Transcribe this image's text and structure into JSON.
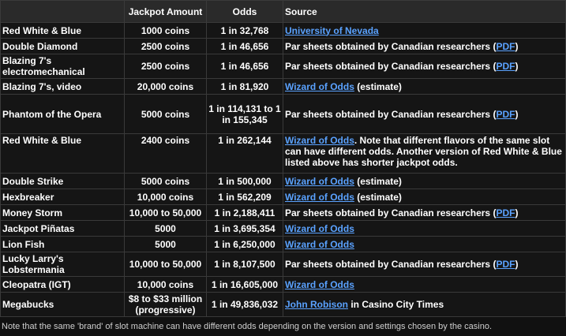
{
  "headers": [
    "",
    "Jackpot Amount",
    "Odds",
    "Source"
  ],
  "rows": [
    {
      "name": "Red White & Blue",
      "jackpot": "1000 coins",
      "odds": "1 in 32,768",
      "link": "University of Nevada",
      "after": ""
    },
    {
      "name": "Double Diamond",
      "jackpot": "2500 coins",
      "odds": "1 in 46,656",
      "before": "Par sheets obtained by Canadian researchers (",
      "link": "PDF",
      "after": ")"
    },
    {
      "name": "Blazing 7's electromechanical",
      "jackpot": "2500 coins",
      "odds": "1 in 46,656",
      "before": "Par sheets obtained by Canadian researchers (",
      "link": "PDF",
      "after": ")"
    },
    {
      "name": "Blazing 7's, video",
      "jackpot": "20,000 coins",
      "odds": "1 in 81,920",
      "link": "Wizard of Odds",
      "after": " (estimate)"
    },
    {
      "name": "Phantom of the Opera",
      "jackpot": "5000 coins",
      "odds": "1 in 114,131 to 1 in 155,345",
      "before": "Par sheets obtained by Canadian researchers (",
      "link": "PDF",
      "after": ")"
    },
    {
      "name": "Red White & Blue",
      "jackpot": "2400 coins",
      "odds": "1 in 262,144",
      "link": "Wizard of Odds",
      "after": ".  Note that different flavors of the same slot can have different odds.  Another version of Red White & Blue listed above has shorter jackpot odds."
    },
    {
      "name": "Double Strike",
      "jackpot": "5000 coins",
      "odds": "1 in 500,000",
      "link": "Wizard of Odds",
      "after": " (estimate)"
    },
    {
      "name": "Hexbreaker",
      "jackpot": "10,000 coins",
      "odds": "1 in 562,209",
      "link": "Wizard of Odds",
      "after": " (estimate)"
    },
    {
      "name": "Money Storm",
      "jackpot": "10,000 to 50,000",
      "odds": "1 in 2,188,411",
      "before": "Par sheets obtained by Canadian researchers (",
      "link": "PDF",
      "after": ")"
    },
    {
      "name": "Jackpot Piñatas",
      "jackpot": "5000",
      "odds": "1 in 3,695,354",
      "link": "Wizard of Odds",
      "after": ""
    },
    {
      "name": "Lion Fish",
      "jackpot": "5000",
      "odds": "1 in 6,250,000",
      "link": "Wizard of Odds",
      "after": ""
    },
    {
      "name": "Lucky Larry's Lobstermania",
      "jackpot": "10,000 to 50,000",
      "odds": "1 in 8,107,500",
      "before": "Par sheets obtained by Canadian researchers (",
      "link": "PDF",
      "after": ")"
    },
    {
      "name": "Cleopatra (IGT)",
      "jackpot": "10,000 coins",
      "odds": "1 in 16,605,000",
      "link": "Wizard of Odds",
      "after": ""
    },
    {
      "name": "Megabucks",
      "jackpot": "$8 to $33 million (progressive)",
      "odds": "1 in 49,836,032",
      "link": "John Robison",
      "after": " in Casino City Times"
    }
  ],
  "footnote": "Note that the same 'brand' of slot machine can have different odds depending on the version and settings chosen by the casino."
}
